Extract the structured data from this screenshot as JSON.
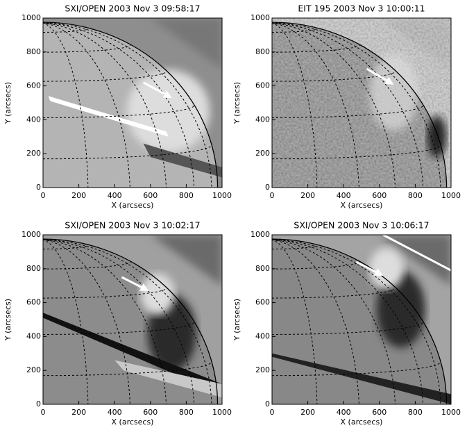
{
  "chart_data": [
    {
      "type": "image",
      "title": "SXI/OPEN 2003 Nov 3 09:58:17",
      "x_label": "X (arcsecs)",
      "y_label": "Y (arcsecs)",
      "xlim": [
        0,
        1000
      ],
      "ylim": [
        0,
        1000
      ],
      "xticks": [
        0,
        200,
        400,
        600,
        800,
        1000
      ],
      "yticks": [
        0,
        200,
        400,
        600,
        800,
        1000
      ]
    },
    {
      "type": "image",
      "title": "EIT 195 2003 Nov 3  10:00:11",
      "x_label": "X (arcsecs)",
      "y_label": "Y (arcsecs)",
      "xlim": [
        0,
        1000
      ],
      "ylim": [
        0,
        1000
      ],
      "xticks": [
        0,
        200,
        400,
        600,
        800,
        1000
      ],
      "yticks": [
        0,
        200,
        400,
        600,
        800,
        1000
      ]
    },
    {
      "type": "image",
      "title": "SXI/OPEN 2003 Nov 3 10:02:17",
      "x_label": "X (arcsecs)",
      "y_label": "Y (arcsecs)",
      "xlim": [
        0,
        1000
      ],
      "ylim": [
        0,
        1000
      ],
      "xticks": [
        0,
        200,
        400,
        600,
        800,
        1000
      ],
      "yticks": [
        0,
        200,
        400,
        600,
        800,
        1000
      ]
    },
    {
      "type": "image",
      "title": "SXI/OPEN 2003 Nov 3 10:06:17",
      "x_label": "X (arcsecs)",
      "y_label": "Y (arcsecs)",
      "xlim": [
        0,
        1000
      ],
      "ylim": [
        0,
        1000
      ],
      "xticks": [
        0,
        200,
        400,
        600,
        800,
        1000
      ],
      "yticks": [
        0,
        200,
        400,
        600,
        800,
        1000
      ]
    }
  ]
}
